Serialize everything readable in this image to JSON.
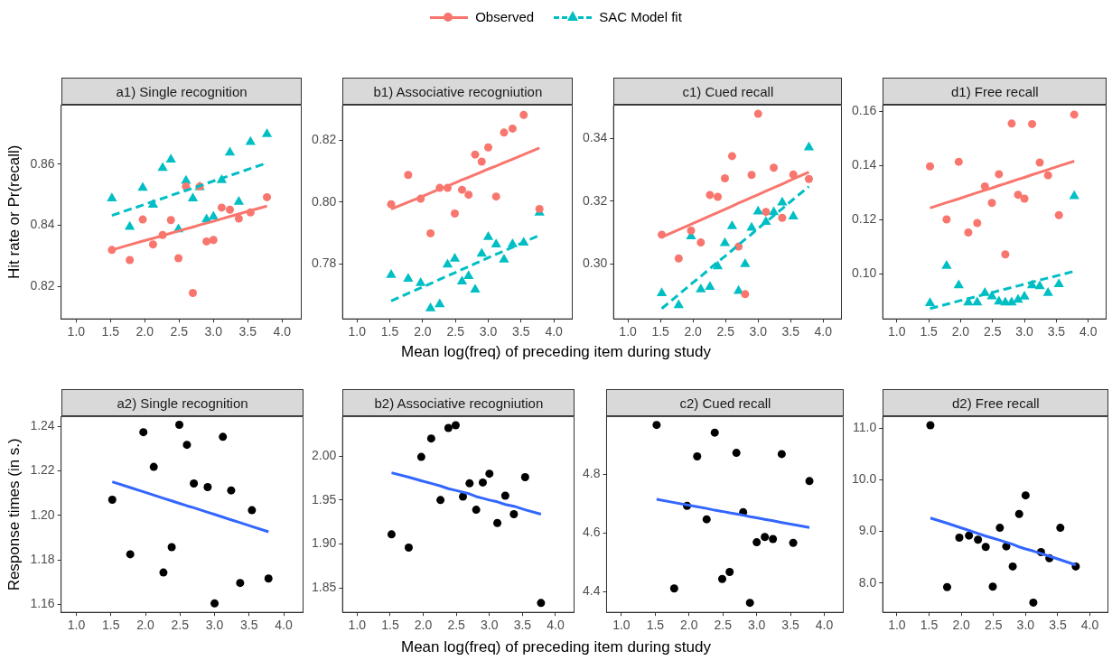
{
  "chart_data": [
    {
      "type": "scatter",
      "title": "a1) Single recognition",
      "ylabel": "Hit rate or Pr(recall)",
      "legend": "top",
      "xlim": [
        0.78,
        4.28
      ],
      "xticks": [
        {
          "value": 1,
          "label": "1.0"
        },
        {
          "value": 1.5,
          "label": "1.5"
        },
        {
          "value": 2,
          "label": "2.0"
        },
        {
          "value": 2.5,
          "label": "2.5"
        },
        {
          "value": 3,
          "label": "3.0"
        },
        {
          "value": 3.5,
          "label": "3.5"
        },
        {
          "value": 4,
          "label": "4.0"
        }
      ],
      "ylim": [
        0.8093,
        0.8794
      ],
      "yticks": [
        0.82,
        0.84,
        0.86
      ],
      "x": [
        1.52,
        1.78,
        1.97,
        2.12,
        2.26,
        2.38,
        2.49,
        2.6,
        2.7,
        2.8,
        2.9,
        3.0,
        3.12,
        3.24,
        3.37,
        3.54,
        3.78
      ],
      "series": [
        {
          "name": "Observed",
          "type": "scatter",
          "marker": "circle",
          "color": "#f8766d",
          "values": [
            0.8319,
            0.8286,
            0.8419,
            0.8337,
            0.8368,
            0.8417,
            0.8292,
            0.8527,
            0.8178,
            0.8527,
            0.8347,
            0.8352,
            0.8458,
            0.8451,
            0.8422,
            0.8442,
            0.8492
          ]
        },
        {
          "name": "SAC Model fit",
          "type": "scatter",
          "marker": "triangle",
          "color": "#00bfc4",
          "values": [
            0.8488,
            0.8395,
            0.8523,
            0.8467,
            0.8588,
            0.8615,
            0.8387,
            0.8546,
            0.8488,
            0.8525,
            0.8419,
            0.8428,
            0.8548,
            0.8638,
            0.8477,
            0.8673,
            0.8699
          ]
        },
        {
          "type": "line",
          "color": "#f8766d",
          "values": [
            0.8319,
            0.8336,
            0.8348,
            0.8357,
            0.8366,
            0.8374,
            0.8381,
            0.8388,
            0.8394,
            0.8401,
            0.8407,
            0.8413,
            0.8421,
            0.8429,
            0.8437,
            0.8448,
            0.8463
          ]
        },
        {
          "type": "line",
          "line_style": "dashed",
          "color": "#00bfc4",
          "values": [
            0.8432,
            0.8452,
            0.8466,
            0.8478,
            0.8488,
            0.8498,
            0.8506,
            0.8514,
            0.8522,
            0.8529,
            0.8537,
            0.8545,
            0.8554,
            0.8563,
            0.8573,
            0.8586,
            0.8604
          ]
        }
      ]
    },
    {
      "type": "scatter",
      "title": "b1) Associative recogniution",
      "xlabel": "Mean log(freq) of preceding item during study",
      "xlim": [
        0.78,
        4.28
      ],
      "xticks": [
        {
          "value": 1,
          "label": "1.0"
        },
        {
          "value": 1.5,
          "label": "1.5"
        },
        {
          "value": 2,
          "label": "2.0"
        },
        {
          "value": 2.5,
          "label": "2.5"
        },
        {
          "value": 3,
          "label": "3.0"
        },
        {
          "value": 3.5,
          "label": "3.5"
        },
        {
          "value": 4,
          "label": "4.0"
        }
      ],
      "ylim": [
        0.7622,
        0.8314
      ],
      "yticks": [
        0.78,
        {
          "value": 0.8,
          "label": "0.80"
        },
        0.82
      ],
      "x": [
        1.52,
        1.78,
        1.97,
        2.12,
        2.26,
        2.38,
        2.49,
        2.6,
        2.7,
        2.8,
        2.9,
        3.0,
        3.12,
        3.24,
        3.37,
        3.54,
        3.78
      ],
      "series": [
        {
          "type": "scatter",
          "marker": "circle",
          "color": "#f8766d",
          "values": [
            0.7993,
            0.8088,
            0.8011,
            0.7899,
            0.8046,
            0.8046,
            0.7963,
            0.804,
            0.8024,
            0.8154,
            0.8131,
            0.8177,
            0.8018,
            0.8225,
            0.8238,
            0.8282,
            0.7978
          ]
        },
        {
          "type": "scatter",
          "marker": "triangle",
          "color": "#00bfc4",
          "values": [
            0.7764,
            0.7752,
            0.7738,
            0.7656,
            0.7669,
            0.7798,
            0.7817,
            0.7743,
            0.7761,
            0.7717,
            0.7833,
            0.7887,
            0.7863,
            0.7814,
            0.7864,
            0.7869,
            0.7966
          ]
        },
        {
          "type": "line",
          "color": "#f8766d",
          "values": [
            0.7977,
            0.8,
            0.8016,
            0.803,
            0.8042,
            0.8052,
            0.8062,
            0.8072,
            0.808,
            0.8089,
            0.8098,
            0.8107,
            0.8117,
            0.8128,
            0.8139,
            0.8154,
            0.8175
          ]
        },
        {
          "type": "line",
          "line_style": "dashed",
          "color": "#00bfc4",
          "values": [
            0.768,
            0.7705,
            0.7722,
            0.7736,
            0.775,
            0.7761,
            0.7771,
            0.7782,
            0.7791,
            0.7801,
            0.781,
            0.782,
            0.7831,
            0.7842,
            0.7854,
            0.787,
            0.7893
          ]
        }
      ]
    },
    {
      "type": "scatter",
      "title": "c1) Cued recall",
      "xlim": [
        0.78,
        4.28
      ],
      "xticks": [
        {
          "value": 1,
          "label": "1.0"
        },
        {
          "value": 1.5,
          "label": "1.5"
        },
        {
          "value": 2,
          "label": "2.0"
        },
        {
          "value": 2.5,
          "label": "2.5"
        },
        {
          "value": 3,
          "label": "3.0"
        },
        {
          "value": 3.5,
          "label": "3.5"
        },
        {
          "value": 4,
          "label": "4.0"
        }
      ],
      "ylim": [
        0.2824,
        0.3507
      ],
      "yticks": [
        {
          "value": 0.3,
          "label": "0.30"
        },
        {
          "value": 0.32,
          "label": "0.32"
        },
        {
          "value": 0.34,
          "label": "0.34"
        }
      ],
      "x": [
        1.52,
        1.78,
        1.97,
        2.12,
        2.26,
        2.38,
        2.49,
        2.6,
        2.7,
        2.8,
        2.9,
        3.0,
        3.12,
        3.24,
        3.37,
        3.54,
        3.78
      ],
      "series": [
        {
          "type": "scatter",
          "marker": "circle",
          "color": "#f8766d",
          "values": [
            0.3093,
            0.3017,
            0.3106,
            0.3068,
            0.322,
            0.3214,
            0.3273,
            0.3344,
            0.3055,
            0.2903,
            0.3284,
            0.3479,
            0.3166,
            0.3307,
            0.3147,
            0.3285,
            0.3271
          ]
        },
        {
          "type": "scatter",
          "marker": "triangle",
          "color": "#00bfc4",
          "values": [
            0.2906,
            0.2868,
            0.3088,
            0.2918,
            0.2926,
            0.2992,
            0.3066,
            0.312,
            0.2913,
            0.2999,
            0.3115,
            0.3167,
            0.3134,
            0.3165,
            0.3196,
            0.3151,
            0.3372
          ]
        },
        {
          "type": "line",
          "color": "#f8766d",
          "values": [
            0.3085,
            0.3109,
            0.3126,
            0.314,
            0.3153,
            0.3164,
            0.3174,
            0.3184,
            0.3194,
            0.3203,
            0.3212,
            0.3221,
            0.3232,
            0.3243,
            0.3255,
            0.3271,
            0.3293
          ]
        },
        {
          "type": "line",
          "line_style": "dashed",
          "color": "#00bfc4",
          "values": [
            0.2857,
            0.2902,
            0.2935,
            0.296,
            0.2985,
            0.3006,
            0.3024,
            0.3043,
            0.3061,
            0.3078,
            0.3095,
            0.3113,
            0.3133,
            0.3154,
            0.3176,
            0.3206,
            0.3247
          ]
        }
      ]
    },
    {
      "type": "scatter",
      "title": "d1) Free recall",
      "xlim": [
        0.78,
        4.28
      ],
      "xticks": [
        {
          "value": 1,
          "label": "1.0"
        },
        {
          "value": 1.5,
          "label": "1.5"
        },
        {
          "value": 2,
          "label": "2.0"
        },
        {
          "value": 2.5,
          "label": "2.5"
        },
        {
          "value": 3,
          "label": "3.0"
        },
        {
          "value": 3.5,
          "label": "3.5"
        },
        {
          "value": 4,
          "label": "4.0"
        }
      ],
      "ylim": [
        0.0833,
        0.1622
      ],
      "yticks": [
        {
          "value": 0.1,
          "label": "0.10"
        },
        0.12,
        0.14,
        0.16
      ],
      "x": [
        1.52,
        1.78,
        1.97,
        2.12,
        2.26,
        2.38,
        2.49,
        2.6,
        2.7,
        2.8,
        2.9,
        3.0,
        3.12,
        3.24,
        3.37,
        3.54,
        3.78
      ],
      "series": [
        {
          "type": "scatter",
          "marker": "circle",
          "color": "#f8766d",
          "values": [
            0.1396,
            0.12,
            0.1413,
            0.1152,
            0.1187,
            0.1322,
            0.1261,
            0.1367,
            0.1071,
            0.1554,
            0.1291,
            0.1277,
            0.1552,
            0.141,
            0.1363,
            0.1216,
            0.1587
          ]
        },
        {
          "type": "scatter",
          "marker": "triangle",
          "color": "#00bfc4",
          "values": [
            0.0891,
            0.1029,
            0.0957,
            0.0894,
            0.0894,
            0.0929,
            0.0916,
            0.0897,
            0.0894,
            0.0894,
            0.0904,
            0.0915,
            0.0957,
            0.0954,
            0.0929,
            0.0961,
            0.1286
          ]
        },
        {
          "type": "line",
          "color": "#f8766d",
          "values": [
            0.1242,
            0.1262,
            0.1276,
            0.1288,
            0.1299,
            0.1308,
            0.1316,
            0.1325,
            0.1332,
            0.134,
            0.1348,
            0.1355,
            0.1365,
            0.1374,
            0.1384,
            0.1397,
            0.1415
          ]
        },
        {
          "type": "line",
          "line_style": "dashed",
          "color": "#00bfc4",
          "values": [
            0.0871,
            0.0887,
            0.0899,
            0.0908,
            0.0916,
            0.0924,
            0.093,
            0.0937,
            0.0943,
            0.0949,
            0.0955,
            0.0961,
            0.0969,
            0.0976,
            0.0984,
            0.0994,
            0.1009
          ]
        }
      ]
    },
    {
      "type": "scatter",
      "title": "a2) Single recognition",
      "ylabel": "Response times (in s.)",
      "xlim": [
        0.78,
        4.28
      ],
      "xticks": [
        {
          "value": 1,
          "label": "1.0"
        },
        {
          "value": 1.5,
          "label": "1.5"
        },
        {
          "value": 2,
          "label": "2.0"
        },
        {
          "value": 2.5,
          "label": "2.5"
        },
        {
          "value": 3,
          "label": "3.0"
        },
        {
          "value": 3.5,
          "label": "3.5"
        },
        {
          "value": 4,
          "label": "4.0"
        }
      ],
      "ylim": [
        1.1564,
        1.2444
      ],
      "yticks": [
        1.16,
        1.18,
        {
          "value": 1.2,
          "label": "1.20"
        },
        1.22,
        1.24
      ],
      "x": [
        1.52,
        1.78,
        1.97,
        2.12,
        2.26,
        2.38,
        2.49,
        2.6,
        2.7,
        2.9,
        3.0,
        3.12,
        3.24,
        3.37,
        3.54,
        3.78
      ],
      "series": [
        {
          "type": "scatter",
          "marker": "circle",
          "color": "#000000",
          "values": [
            1.207,
            1.1825,
            1.2374,
            1.2218,
            1.1743,
            1.1857,
            1.2407,
            1.2317,
            1.2143,
            1.2127,
            1.1604,
            1.2353,
            1.2112,
            1.1696,
            1.2023,
            1.1716
          ]
        },
        {
          "type": "line",
          "color": "#3366ff",
          "values": [
            1.2151,
            1.2125,
            1.2106,
            1.2091,
            1.2077,
            1.2065,
            1.2054,
            1.2043,
            1.2034,
            1.2014,
            1.2004,
            1.1992,
            1.198,
            1.1967,
            1.195,
            1.1926
          ]
        }
      ]
    },
    {
      "type": "scatter",
      "title": "b2) Associative recogniution",
      "xlabel": "Mean log(freq) of preceding item during study",
      "xlim": [
        0.78,
        4.28
      ],
      "xticks": [
        {
          "value": 1,
          "label": "1.0"
        },
        {
          "value": 1.5,
          "label": "1.5"
        },
        {
          "value": 2,
          "label": "2.0"
        },
        {
          "value": 2.5,
          "label": "2.5"
        },
        {
          "value": 3,
          "label": "3.0"
        },
        {
          "value": 3.5,
          "label": "3.5"
        },
        {
          "value": 4,
          "label": "4.0"
        }
      ],
      "ylim": [
        1.8224,
        2.0449
      ],
      "yticks": [
        1.85,
        {
          "value": 1.9,
          "label": "1.90"
        },
        1.95,
        {
          "value": 2,
          "label": "2.00"
        }
      ],
      "x": [
        1.52,
        1.78,
        1.97,
        2.12,
        2.26,
        2.38,
        2.49,
        2.6,
        2.7,
        2.8,
        2.9,
        3.0,
        3.12,
        3.24,
        3.37,
        3.54,
        3.78
      ],
      "series": [
        {
          "type": "scatter",
          "marker": "circle",
          "color": "#000000",
          "values": [
            1.911,
            1.896,
            1.999,
            2.02,
            1.95,
            2.032,
            2.035,
            1.954,
            1.969,
            1.939,
            1.97,
            1.98,
            1.924,
            1.955,
            1.934,
            1.976,
            1.833
          ]
        },
        {
          "type": "line",
          "color": "#3366ff",
          "values": [
            1.981,
            1.976,
            1.972,
            1.969,
            1.966,
            1.963,
            1.961,
            1.959,
            1.957,
            1.954,
            1.952,
            1.95,
            1.948,
            1.945,
            1.943,
            1.939,
            1.934
          ]
        }
      ]
    },
    {
      "type": "scatter",
      "title": "c2) Cued recall",
      "xlim": [
        0.78,
        4.28
      ],
      "xticks": [
        {
          "value": 1,
          "label": "1.0"
        },
        {
          "value": 1.5,
          "label": "1.5"
        },
        {
          "value": 2,
          "label": "2.0"
        },
        {
          "value": 2.5,
          "label": "2.5"
        },
        {
          "value": 3,
          "label": "3.0"
        },
        {
          "value": 3.5,
          "label": "3.5"
        },
        {
          "value": 4,
          "label": "4.0"
        }
      ],
      "ylim": [
        4.3306,
        4.9965
      ],
      "yticks": [
        4.4,
        4.6,
        4.8
      ],
      "x": [
        1.52,
        1.78,
        1.97,
        2.12,
        2.26,
        2.38,
        2.49,
        2.6,
        2.7,
        2.8,
        2.9,
        3.0,
        3.12,
        3.24,
        3.37,
        3.54,
        3.78
      ],
      "series": [
        {
          "type": "scatter",
          "marker": "circle",
          "color": "#000000",
          "values": [
            4.968,
            4.412,
            4.693,
            4.861,
            4.647,
            4.942,
            4.444,
            4.468,
            4.873,
            4.671,
            4.363,
            4.569,
            4.587,
            4.58,
            4.869,
            4.567,
            4.777
          ]
        },
        {
          "type": "line",
          "color": "#3366ff",
          "values": [
            4.715,
            4.704,
            4.696,
            4.69,
            4.684,
            4.678,
            4.674,
            4.669,
            4.665,
            4.661,
            4.656,
            4.652,
            4.647,
            4.642,
            4.636,
            4.629,
            4.619
          ]
        }
      ]
    },
    {
      "type": "scatter",
      "title": "d2) Free recall",
      "xlim": [
        0.78,
        4.28
      ],
      "xticks": [
        {
          "value": 1,
          "label": "1.0"
        },
        {
          "value": 1.5,
          "label": "1.5"
        },
        {
          "value": 2,
          "label": "2.0"
        },
        {
          "value": 2.5,
          "label": "2.5"
        },
        {
          "value": 3,
          "label": "3.0"
        },
        {
          "value": 3.5,
          "label": "3.5"
        },
        {
          "value": 4,
          "label": "4.0"
        }
      ],
      "ylim": [
        7.431,
        11.228
      ],
      "yticks": [
        {
          "value": 8,
          "label": "8.0"
        },
        {
          "value": 9,
          "label": "9.0"
        },
        {
          "value": 10,
          "label": "10.0"
        },
        {
          "value": 11,
          "label": "11.0"
        }
      ],
      "x": [
        1.52,
        1.78,
        1.97,
        2.12,
        2.26,
        2.38,
        2.49,
        2.6,
        2.7,
        2.8,
        2.9,
        3.0,
        3.12,
        3.24,
        3.37,
        3.54,
        3.78
      ],
      "series": [
        {
          "type": "scatter",
          "marker": "circle",
          "color": "#000000",
          "values": [
            11.06,
            7.92,
            8.88,
            8.92,
            8.84,
            8.7,
            7.93,
            9.07,
            8.71,
            8.32,
            9.34,
            9.7,
            7.62,
            8.6,
            8.48,
            9.07,
            8.32
          ]
        },
        {
          "type": "line",
          "color": "#3366ff",
          "values": [
            9.26,
            9.16,
            9.08,
            9.02,
            8.96,
            8.91,
            8.87,
            8.83,
            8.79,
            8.75,
            8.7,
            8.66,
            8.62,
            8.57,
            8.52,
            8.45,
            8.35
          ]
        }
      ]
    }
  ]
}
